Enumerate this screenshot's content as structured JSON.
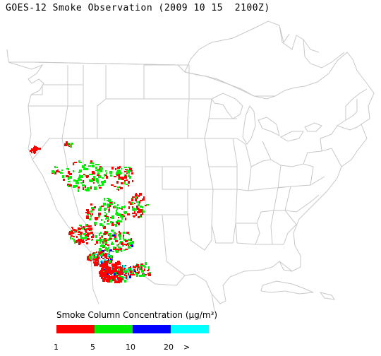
{
  "title": "GOES-12 Smoke Observation (2009 10 15  2100Z)",
  "legend": {
    "title": "Smoke Column Concentration (µg/m³)",
    "classes": [
      {
        "range": "1-5",
        "color": "#ff0000"
      },
      {
        "range": "5-10",
        "color": "#00ee00"
      },
      {
        "range": "10-20",
        "color": "#0000ff"
      },
      {
        "range": ">20",
        "color": "#00ffff"
      }
    ],
    "tick_labels": [
      "1",
      "5",
      "10",
      "20",
      ">"
    ]
  },
  "map": {
    "region": "Continental United States",
    "state_boundaries": true,
    "border_color": "#c8c8c8",
    "smoke_region": "Southwestern United States (California, Nevada, Arizona)"
  }
}
